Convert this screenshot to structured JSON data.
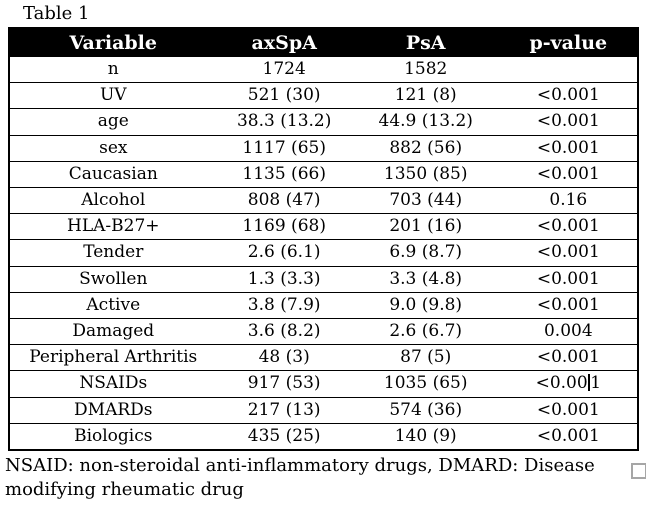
{
  "caption": "Table 1",
  "table": {
    "headers": [
      "Variable",
      "axSpA",
      "PsA",
      "p-value"
    ],
    "rows": [
      {
        "cells": [
          "n",
          "1724",
          "1582",
          ""
        ]
      },
      {
        "cells": [
          "UV",
          "521 (30)",
          "121 (8)",
          "<0.001"
        ]
      },
      {
        "cells": [
          "age",
          "38.3 (13.2)",
          "44.9 (13.2)",
          "<0.001"
        ]
      },
      {
        "cells": [
          "sex",
          "1117 (65)",
          "882 (56)",
          "<0.001"
        ]
      },
      {
        "cells": [
          "Caucasian",
          "1135 (66)",
          "1350 (85)",
          "<0.001"
        ]
      },
      {
        "cells": [
          "Alcohol",
          "808 (47)",
          "703 (44)",
          "0.16"
        ]
      },
      {
        "cells": [
          "HLA-B27+",
          "1169 (68)",
          "201 (16)",
          "<0.001"
        ]
      },
      {
        "cells": [
          "Tender",
          "2.6 (6.1)",
          "6.9 (8.7)",
          "<0.001"
        ]
      },
      {
        "cells": [
          "Swollen",
          "1.3 (3.3)",
          "3.3 (4.8)",
          "<0.001"
        ]
      },
      {
        "cells": [
          "Active",
          "3.8 (7.9)",
          "9.0 (9.8)",
          "<0.001"
        ]
      },
      {
        "cells": [
          "Damaged",
          "3.6 (8.2)",
          "2.6 (6.7)",
          "0.004"
        ]
      },
      {
        "cells": [
          "Peripheral Arthritis",
          "48 (3)",
          "87 (5)",
          "<0.001"
        ]
      },
      {
        "cells": [
          "NSAIDs",
          "917 (53)",
          "1035 (65)",
          "<0.001"
        ]
      },
      {
        "cells": [
          "DMARDs",
          "217 (13)",
          "574 (36)",
          "<0.001"
        ]
      },
      {
        "cells": [
          "Biologics",
          "435 (25)",
          "140 (9)",
          "<0.001"
        ]
      }
    ]
  },
  "caret": {
    "row_index": 12,
    "cell_index": 3,
    "before": "<0.00",
    "after": "1"
  },
  "footnote": "NSAID: non-steroidal anti-inflammatory drugs, DMARD: Disease modifying rheumatic drug",
  "colors": {
    "header_bg": "#000000",
    "header_text": "#ffffff",
    "body_text": "#000000",
    "border": "#000000",
    "resize_handle_border": "#a6a6a6",
    "background": "#ffffff"
  }
}
